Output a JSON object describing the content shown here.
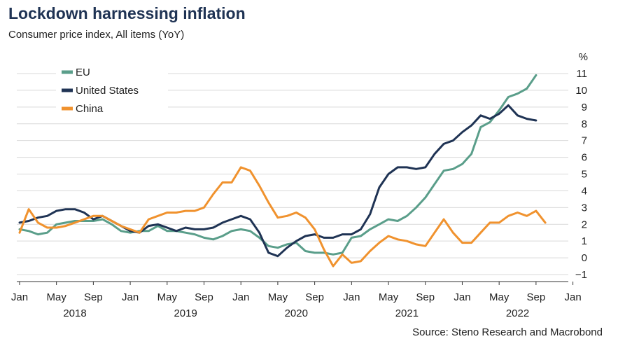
{
  "title": "Lockdown harnessing inflation",
  "subtitle": "Consumer price index, All items (YoY)",
  "source": "Source: Steno Research and Macrobond",
  "chart_data": {
    "type": "line",
    "unit_label": "%",
    "ylim": [
      -1,
      11
    ],
    "y_ticks": [
      -1,
      0,
      1,
      2,
      3,
      4,
      5,
      6,
      7,
      8,
      9,
      10,
      11
    ],
    "x_start": "2018-01",
    "x_end": "2023-01",
    "x_tick_labels": [
      "Jan",
      "May",
      "Sep",
      "Jan",
      "May",
      "Sep",
      "Jan",
      "May",
      "Sep",
      "Jan",
      "May",
      "Sep",
      "Jan",
      "May",
      "Sep",
      "Jan"
    ],
    "x_tick_dates": [
      "2018-01",
      "2018-05",
      "2018-09",
      "2019-01",
      "2019-05",
      "2019-09",
      "2020-01",
      "2020-05",
      "2020-09",
      "2021-01",
      "2021-05",
      "2021-09",
      "2022-01",
      "2022-05",
      "2022-09",
      "2023-01"
    ],
    "year_labels": [
      "2018",
      "2019",
      "2020",
      "2021",
      "2022"
    ],
    "grid": true,
    "legend_position": "top-left",
    "series": [
      {
        "name": "EU",
        "color": "#5a9e8a",
        "start": "2018-01",
        "values": [
          1.7,
          1.6,
          1.4,
          1.5,
          2.0,
          2.1,
          2.2,
          2.2,
          2.2,
          2.3,
          2.0,
          1.6,
          1.5,
          1.6,
          1.6,
          1.9,
          1.6,
          1.6,
          1.5,
          1.4,
          1.2,
          1.1,
          1.3,
          1.6,
          1.7,
          1.6,
          1.2,
          0.7,
          0.6,
          0.8,
          0.9,
          0.4,
          0.3,
          0.3,
          0.2,
          0.3,
          1.2,
          1.3,
          1.7,
          2.0,
          2.3,
          2.2,
          2.5,
          3.0,
          3.6,
          4.4,
          5.2,
          5.3,
          5.6,
          6.2,
          7.8,
          8.1,
          8.8,
          9.6,
          9.8,
          10.1,
          10.9
        ]
      },
      {
        "name": "United States",
        "color": "#1f3354",
        "start": "2018-01",
        "values": [
          2.1,
          2.2,
          2.4,
          2.5,
          2.8,
          2.9,
          2.9,
          2.7,
          2.3,
          2.5,
          2.2,
          1.9,
          1.6,
          1.5,
          1.9,
          2.0,
          1.8,
          1.6,
          1.8,
          1.7,
          1.7,
          1.8,
          2.1,
          2.3,
          2.5,
          2.3,
          1.5,
          0.3,
          0.1,
          0.6,
          1.0,
          1.3,
          1.4,
          1.2,
          1.2,
          1.4,
          1.4,
          1.7,
          2.6,
          4.2,
          5.0,
          5.4,
          5.4,
          5.3,
          5.4,
          6.2,
          6.8,
          7.0,
          7.5,
          7.9,
          8.5,
          8.3,
          8.6,
          9.1,
          8.5,
          8.3,
          8.2
        ]
      },
      {
        "name": "China",
        "color": "#f0922e",
        "start": "2018-01",
        "values": [
          1.5,
          2.9,
          2.1,
          1.8,
          1.8,
          1.9,
          2.1,
          2.3,
          2.5,
          2.5,
          2.2,
          1.9,
          1.7,
          1.5,
          2.3,
          2.5,
          2.7,
          2.7,
          2.8,
          2.8,
          3.0,
          3.8,
          4.5,
          4.5,
          5.4,
          5.2,
          4.3,
          3.3,
          2.4,
          2.5,
          2.7,
          2.4,
          1.7,
          0.5,
          -0.5,
          0.2,
          -0.3,
          -0.2,
          0.4,
          0.9,
          1.3,
          1.1,
          1.0,
          0.8,
          0.7,
          1.5,
          2.3,
          1.5,
          0.9,
          0.9,
          1.5,
          2.1,
          2.1,
          2.5,
          2.7,
          2.5,
          2.8,
          2.1
        ]
      }
    ]
  }
}
